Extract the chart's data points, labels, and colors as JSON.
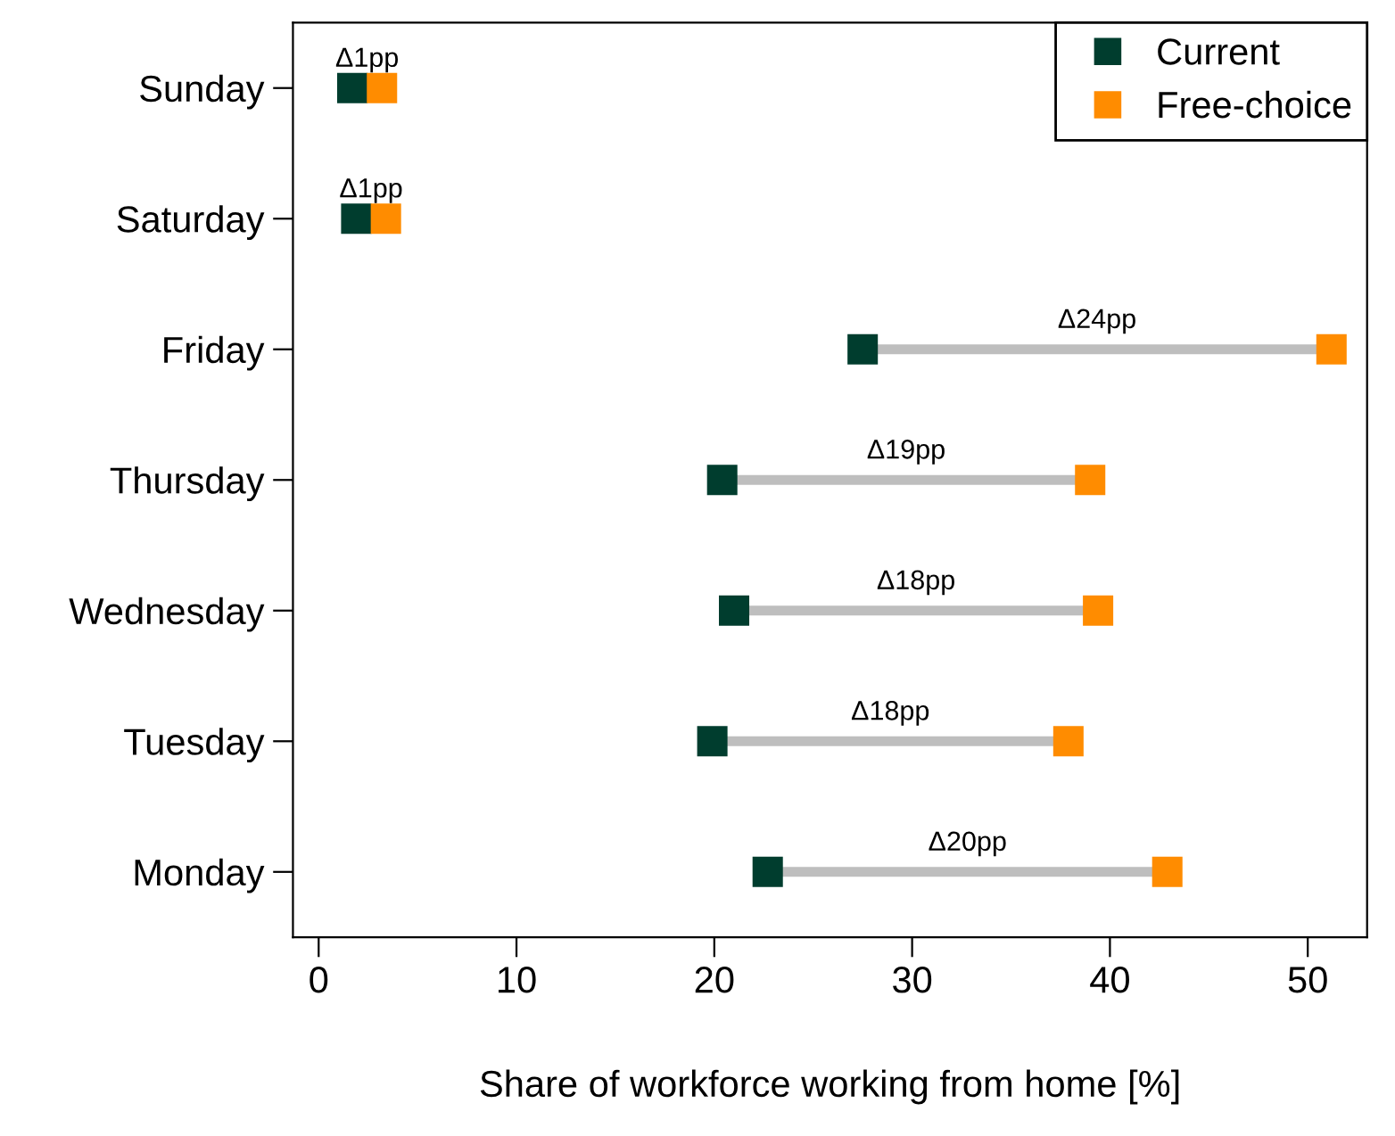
{
  "chart_data": {
    "type": "scatter",
    "orientation": "horizontal",
    "xlabel": "Share of workforce working from home [%]",
    "categories": [
      "Sunday",
      "Saturday",
      "Friday",
      "Thursday",
      "Wednesday",
      "Tuesday",
      "Monday"
    ],
    "series": [
      {
        "name": "Current",
        "color": "#003d2e",
        "values": [
          1.7,
          1.9,
          27.5,
          20.4,
          21.0,
          19.9,
          22.7
        ]
      },
      {
        "name": "Free-choice",
        "color": "#ff8c00",
        "values": [
          3.2,
          3.4,
          51.2,
          39.0,
          39.4,
          37.9,
          42.9
        ]
      }
    ],
    "annotations": [
      "Δ1pp",
      "Δ1pp",
      "Δ24pp",
      "Δ19pp",
      "Δ18pp",
      "Δ18pp",
      "Δ20pp"
    ],
    "xlim": [
      -1.3,
      53
    ],
    "xticks": [
      0,
      10,
      20,
      30,
      40,
      50
    ],
    "marker": "square",
    "legend": "top right",
    "grid": false
  }
}
